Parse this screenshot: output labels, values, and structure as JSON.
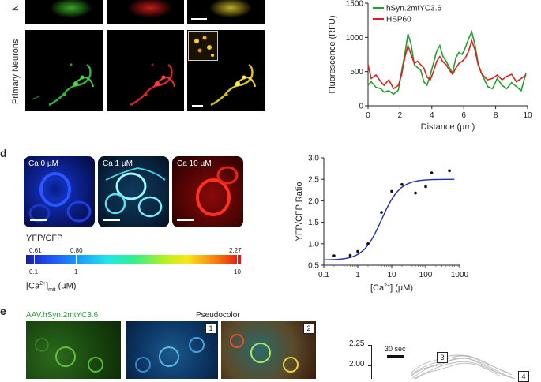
{
  "panel_c": {
    "row_label_top": "N",
    "row_label_neurons": "Primary Neurons",
    "chart_data": {
      "type": "line",
      "xlabel": "Distance (µm)",
      "ylabel": "Fluorescence (RFU)",
      "xlim": [
        0,
        10
      ],
      "ylim": [
        0,
        1500
      ],
      "x_ticks": [
        "0",
        "2",
        "4",
        "6",
        "8",
        "10"
      ],
      "y_ticks": [
        "0",
        "500",
        "1000",
        "1500"
      ],
      "legend": "top-left",
      "series": [
        {
          "name": "hSyn.2mtYC3.6",
          "color": "#1fa12b",
          "x": [
            0,
            0.2,
            0.5,
            0.8,
            1.0,
            1.3,
            1.6,
            1.9,
            2.1,
            2.3,
            2.5,
            2.7,
            2.9,
            3.1,
            3.3,
            3.5,
            3.7,
            3.9,
            4.1,
            4.3,
            4.5,
            4.7,
            4.9,
            5.1,
            5.3,
            5.5,
            5.7,
            5.9,
            6.1,
            6.3,
            6.5,
            6.7,
            6.9,
            7.1,
            7.3,
            7.5,
            7.8,
            8.1,
            8.4,
            8.7,
            9.0,
            9.3,
            9.6,
            9.9
          ],
          "y": [
            300,
            350,
            270,
            250,
            200,
            220,
            170,
            230,
            500,
            750,
            1050,
            900,
            600,
            560,
            520,
            350,
            300,
            450,
            620,
            800,
            880,
            720,
            650,
            560,
            480,
            700,
            780,
            750,
            850,
            980,
            1080,
            900,
            620,
            480,
            380,
            280,
            250,
            400,
            300,
            250,
            340,
            280,
            220,
            480
          ]
        },
        {
          "name": "HSP60",
          "color": "#e02020",
          "x": [
            0,
            0.2,
            0.5,
            0.8,
            1.0,
            1.3,
            1.6,
            1.9,
            2.1,
            2.3,
            2.5,
            2.7,
            2.9,
            3.1,
            3.3,
            3.5,
            3.7,
            3.9,
            4.1,
            4.3,
            4.5,
            4.7,
            4.9,
            5.1,
            5.3,
            5.5,
            5.7,
            5.9,
            6.1,
            6.3,
            6.5,
            6.7,
            6.9,
            7.1,
            7.3,
            7.5,
            7.8,
            8.1,
            8.4,
            8.7,
            9.0,
            9.3,
            9.6,
            9.9
          ],
          "y": [
            600,
            400,
            450,
            350,
            300,
            380,
            250,
            300,
            450,
            700,
            880,
            750,
            620,
            650,
            600,
            550,
            420,
            380,
            500,
            650,
            720,
            640,
            600,
            520,
            460,
            550,
            620,
            650,
            700,
            800,
            950,
            820,
            600,
            480,
            420,
            380,
            400,
            450,
            380,
            430,
            460,
            350,
            400,
            450
          ]
        }
      ]
    }
  },
  "panel_d": {
    "letter": "d",
    "images": [
      "Ca 0 µM",
      "Ca 1 µM",
      "Ca 10 µM"
    ],
    "colorbar": {
      "title": "YFP/CFP",
      "top_ticks": [
        "0.61",
        "0.80",
        "2.27"
      ],
      "bottom_ticks": [
        "0.1",
        "1",
        "10"
      ],
      "xlabel_main": "[Ca",
      "xlabel_sup": "2+",
      "xlabel_sub": "mit",
      "xlabel_end": " (µM)"
    },
    "chart_data": {
      "type": "scatter",
      "xlabel_main": "[Ca",
      "xlabel_sup": "2+",
      "xlabel_end": "] (µM)",
      "ylabel": "YFP/CFP Ratio",
      "x_scale": "log",
      "xlim": [
        0.1,
        1000
      ],
      "ylim": [
        0.5,
        3.0
      ],
      "x_ticks": [
        "0.1",
        "1",
        "10",
        "100",
        "1000"
      ],
      "y_ticks": [
        "0.5",
        "1.0",
        "1.5",
        "2.0",
        "2.5",
        "3.0"
      ],
      "fit_color": "#1f2fa8",
      "fit": {
        "bottom": 0.62,
        "top": 2.5,
        "ec50": 5,
        "hill": 1.6
      },
      "points": [
        {
          "x": 0.2,
          "y": 0.72
        },
        {
          "x": 0.6,
          "y": 0.73
        },
        {
          "x": 1,
          "y": 0.82
        },
        {
          "x": 2,
          "y": 1.0
        },
        {
          "x": 5,
          "y": 1.73
        },
        {
          "x": 10,
          "y": 2.22
        },
        {
          "x": 20,
          "y": 2.38
        },
        {
          "x": 50,
          "y": 2.18
        },
        {
          "x": 100,
          "y": 2.33
        },
        {
          "x": 150,
          "y": 2.65
        },
        {
          "x": 500,
          "y": 2.7
        }
      ]
    }
  },
  "panel_e": {
    "letter": "e",
    "label_green": "AAV.hSyn.2mtYC3.6",
    "label_pseudo": "Pseudocolor",
    "box1": "1",
    "box2": "2",
    "chart": {
      "y_ticks": [
        "2.25",
        "2.00"
      ],
      "scale_label": "30 sec",
      "box3": "3",
      "box4": "4"
    }
  }
}
